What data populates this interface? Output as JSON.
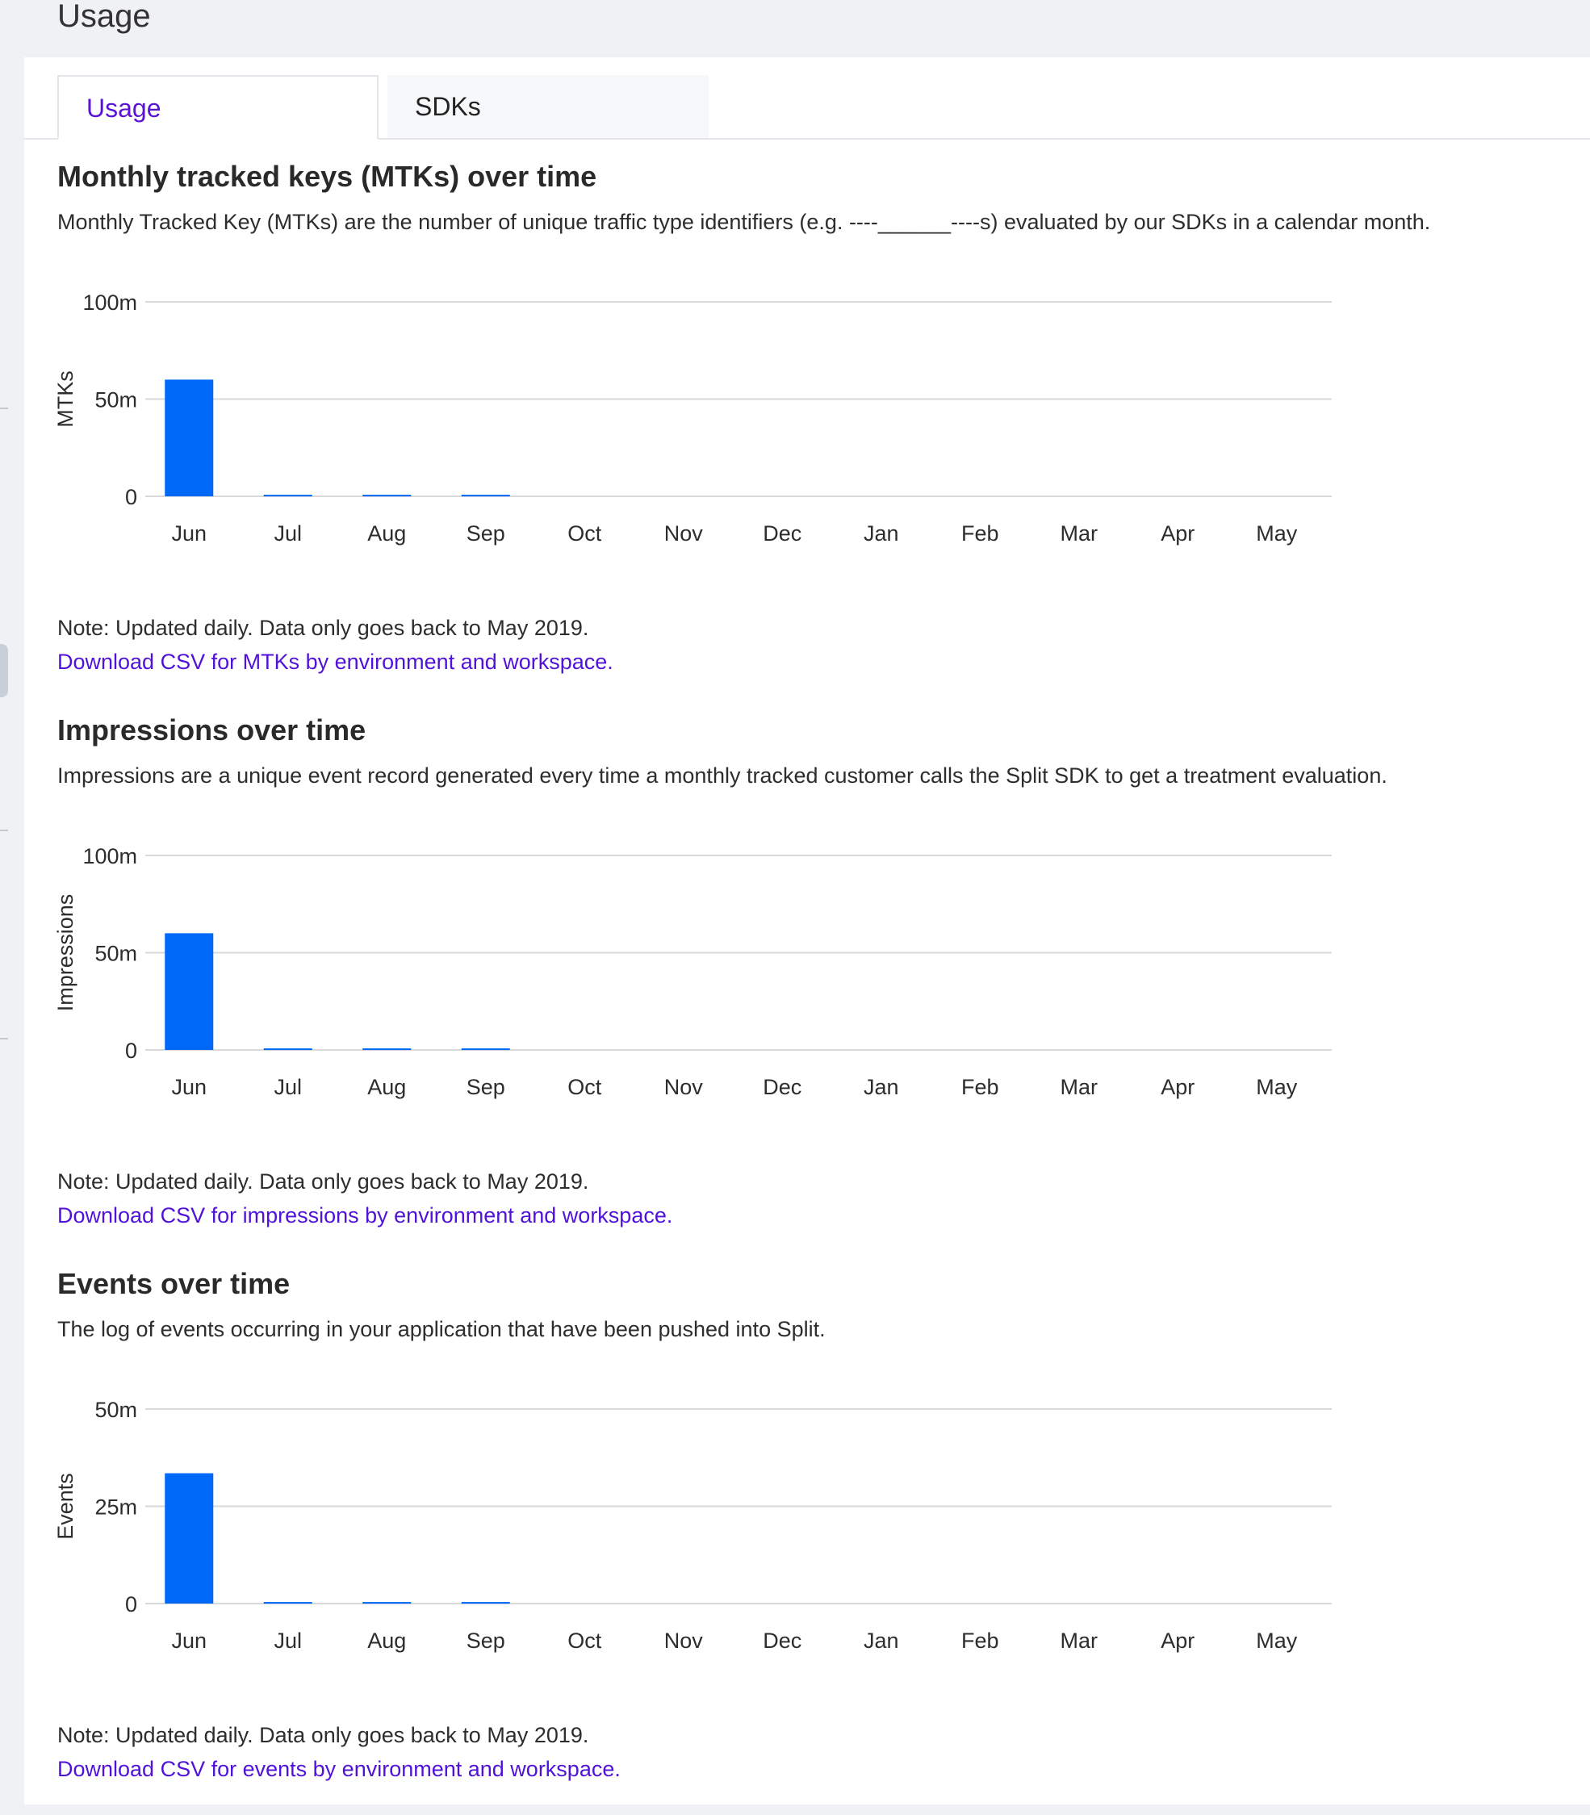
{
  "page": {
    "title": "Usage"
  },
  "tabs": [
    {
      "label": "Usage",
      "active": true
    },
    {
      "label": "SDKs",
      "active": false
    }
  ],
  "colors": {
    "bar": "#0068f9",
    "link": "#5012d9",
    "active_tab": "#5a12d6",
    "grid": "#d9d9d9"
  },
  "sections": [
    {
      "title": "Monthly tracked keys (MTKs) over time",
      "description": "Monthly Tracked Key (MTKs) are the number of unique traffic type identifiers (e.g. ----______----s) evaluated by our SDKs in a calendar month.",
      "note": "Note: Updated daily. Data only goes back to May 2019.",
      "link": "Download CSV for MTKs by environment and workspace."
    },
    {
      "title": "Impressions over time",
      "description": "Impressions are a unique event record generated every time a monthly tracked customer calls the Split SDK to get a treatment evaluation.",
      "note": "Note: Updated daily. Data only goes back to May 2019.",
      "link": "Download CSV for impressions by environment and workspace."
    },
    {
      "title": "Events over time",
      "description": "The log of events occurring in your application that have been pushed into Split.",
      "note": "Note: Updated daily. Data only goes back to May 2019.",
      "link": "Download CSV for events by environment and workspace."
    }
  ],
  "chart_data": [
    {
      "type": "bar",
      "title": "",
      "xlabel": "",
      "ylabel": "MTKs",
      "categories": [
        "Jun",
        "Jul",
        "Aug",
        "Sep",
        "Oct",
        "Nov",
        "Dec",
        "Jan",
        "Feb",
        "Mar",
        "Apr",
        "May"
      ],
      "values": [
        60,
        0.8,
        0.8,
        0.8,
        0,
        0,
        0,
        0,
        0,
        0,
        0,
        0
      ],
      "unit": "m",
      "ylim": [
        0,
        100
      ],
      "yticks": [
        "0",
        "50m",
        "100m"
      ],
      "ytick_values": [
        0,
        50,
        100
      ],
      "grid": true
    },
    {
      "type": "bar",
      "title": "",
      "xlabel": "",
      "ylabel": "Impressions",
      "categories": [
        "Jun",
        "Jul",
        "Aug",
        "Sep",
        "Oct",
        "Nov",
        "Dec",
        "Jan",
        "Feb",
        "Mar",
        "Apr",
        "May"
      ],
      "values": [
        60,
        0.8,
        0.8,
        0.8,
        0,
        0,
        0,
        0,
        0,
        0,
        0,
        0
      ],
      "unit": "m",
      "ylim": [
        0,
        100
      ],
      "yticks": [
        "0",
        "50m",
        "100m"
      ],
      "ytick_values": [
        0,
        50,
        100
      ],
      "grid": true
    },
    {
      "type": "bar",
      "title": "",
      "xlabel": "",
      "ylabel": "Events",
      "categories": [
        "Jun",
        "Jul",
        "Aug",
        "Sep",
        "Oct",
        "Nov",
        "Dec",
        "Jan",
        "Feb",
        "Mar",
        "Apr",
        "May"
      ],
      "values": [
        33.5,
        0.4,
        0.4,
        0.4,
        0,
        0,
        0,
        0,
        0,
        0,
        0,
        0
      ],
      "unit": "m",
      "ylim": [
        0,
        50
      ],
      "yticks": [
        "0",
        "25m",
        "50m"
      ],
      "ytick_values": [
        0,
        25,
        50
      ],
      "grid": true
    }
  ]
}
